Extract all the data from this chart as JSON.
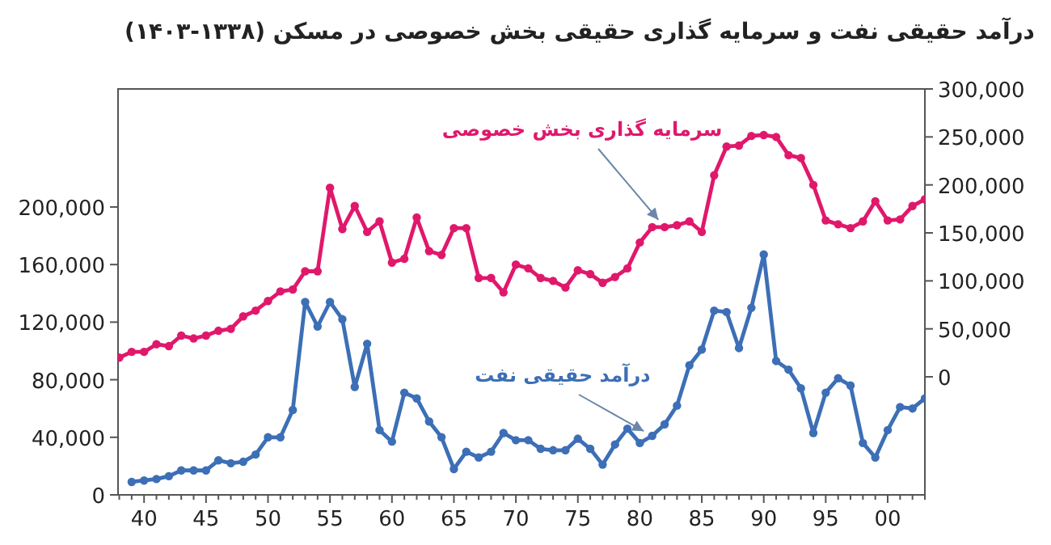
{
  "chart_data": {
    "type": "line",
    "title": "درآمد حقیقی نفت و سرمایه گذاری حقیقی بخش خصوصی در مسکن (۱۳۳۸-۱۴۰۳)",
    "categories": [
      null,
      null,
      "40",
      null,
      null,
      null,
      null,
      "45",
      null,
      null,
      null,
      null,
      "50",
      null,
      null,
      null,
      null,
      "55",
      null,
      null,
      null,
      null,
      "60",
      null,
      null,
      null,
      null,
      "65",
      null,
      null,
      null,
      null,
      "70",
      null,
      null,
      null,
      null,
      "75",
      null,
      null,
      null,
      null,
      "80",
      null,
      null,
      null,
      null,
      "85",
      null,
      null,
      null,
      null,
      "90",
      null,
      null,
      null,
      null,
      "95",
      null,
      null,
      null,
      null,
      "00",
      null,
      null,
      null
    ],
    "series": [
      {
        "name": "درآمد حقیقی نفت",
        "color": "#3c6fb6",
        "values": [
          null,
          9000,
          10000,
          11000,
          13000,
          17000,
          17000,
          17000,
          24000,
          22000,
          23000,
          28000,
          40000,
          40000,
          59000,
          134000,
          117000,
          134000,
          122000,
          75000,
          105000,
          45000,
          37000,
          71000,
          67000,
          51000,
          40000,
          18000,
          30000,
          26000,
          30000,
          43000,
          38000,
          38000,
          32000,
          31000,
          31000,
          39000,
          32000,
          21000,
          35000,
          46000,
          36000,
          41000,
          49000,
          62000,
          90000,
          101000,
          128000,
          127000,
          102000,
          130000,
          167000,
          93000,
          87000,
          74000,
          43000,
          71000,
          81000,
          76000,
          36000,
          26000,
          45000,
          61000,
          60000,
          67000
        ]
      },
      {
        "name": "سرمایه گذاری بخش خصوصی",
        "color": "#e0186c",
        "axis": "y2",
        "values": [
          20000,
          26000,
          26000,
          34000,
          32000,
          43000,
          40000,
          43000,
          48000,
          50000,
          63000,
          69000,
          79000,
          89000,
          91000,
          110000,
          110000,
          197000,
          154000,
          178000,
          151000,
          162000,
          119000,
          123000,
          166000,
          131000,
          127000,
          155000,
          155000,
          103000,
          103000,
          88000,
          117000,
          113000,
          103000,
          100000,
          93000,
          111000,
          107000,
          98000,
          104000,
          113000,
          140000,
          156000,
          156000,
          158000,
          162000,
          151000,
          210000,
          240000,
          241000,
          251000,
          252000,
          250000,
          231000,
          228000,
          200000,
          163000,
          159000,
          155000,
          162000,
          183000,
          163000,
          164000,
          178000,
          185000
        ]
      }
    ],
    "ylim": [
      0,
      282000
    ],
    "yticks": [
      0,
      {
        "value": 40000,
        "label": "40,000"
      },
      {
        "value": 80000,
        "label": "80,000"
      },
      {
        "value": 120000,
        "label": "120,000"
      },
      {
        "value": 160000,
        "label": "160,000"
      },
      {
        "value": 200000,
        "label": "200,000"
      }
    ],
    "y2lim": [
      -123000,
      300000
    ],
    "y2ticks": [
      0,
      {
        "value": 50000,
        "label": "50,000"
      },
      {
        "value": 100000,
        "label": "100,000"
      },
      {
        "value": 150000,
        "label": "150,000"
      },
      {
        "value": 200000,
        "label": "200,000"
      },
      {
        "value": 250000,
        "label": "250,000"
      },
      {
        "value": 300000,
        "label": "300,000"
      }
    ],
    "marker": "circle",
    "line_style": "solid",
    "grid": false,
    "legend": false
  }
}
